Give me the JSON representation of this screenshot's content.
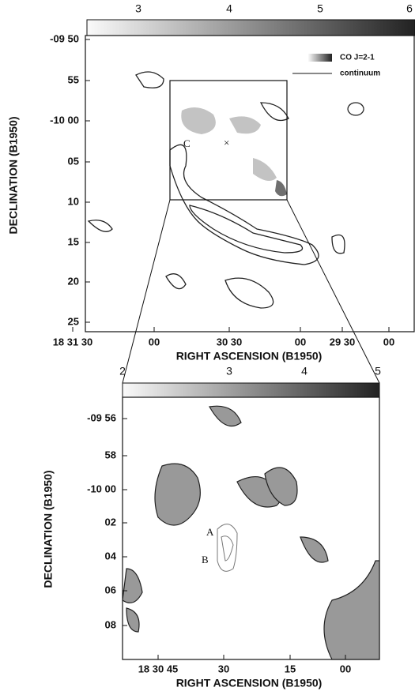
{
  "panels": [
    {
      "colorbar_ticks": [
        "3",
        "4",
        "5",
        "6"
      ],
      "y_ticks": [
        "-09 50",
        "55",
        "-10 00",
        "05",
        "10",
        "15",
        "20",
        "25"
      ],
      "x_ticks": [
        "18 31 30",
        "00",
        "30 30",
        "00",
        "29 30",
        "00"
      ],
      "x_label": "RIGHT ASCENSION (B1950)",
      "y_label": "DECLINATION (B1950)",
      "legend": [
        "CO J=2-1",
        "continuum"
      ],
      "annotations": [
        "C",
        "×"
      ]
    },
    {
      "colorbar_ticks": [
        "2",
        "3",
        "4",
        "5"
      ],
      "y_ticks": [
        "-09 56",
        "58",
        "-10 00",
        "02",
        "04",
        "06",
        "08"
      ],
      "x_ticks": [
        "18 30 45",
        "30",
        "15",
        "00"
      ],
      "x_label": "RIGHT ASCENSION (B1950)",
      "y_label": "DECLINATION (B1950)",
      "annotations": [
        "A",
        "B"
      ]
    }
  ]
}
